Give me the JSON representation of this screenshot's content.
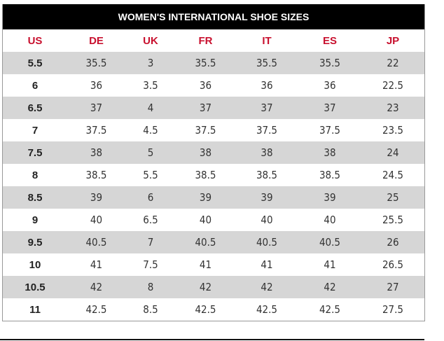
{
  "title": "WOMEN'S INTERNATIONAL SHOE SIZES",
  "headers": [
    "US",
    "DE",
    "UK",
    "FR",
    "IT",
    "ES",
    "JP"
  ],
  "rows": [
    [
      "5.5",
      "35.5",
      "3",
      "35.5",
      "35.5",
      "35.5",
      "22"
    ],
    [
      "6",
      "36",
      "3.5",
      "36",
      "36",
      "36",
      "22.5"
    ],
    [
      "6.5",
      "37",
      "4",
      "37",
      "37",
      "37",
      "23"
    ],
    [
      "7",
      "37.5",
      "4.5",
      "37.5",
      "37.5",
      "37.5",
      "23.5"
    ],
    [
      "7.5",
      "38",
      "5",
      "38",
      "38",
      "38",
      "24"
    ],
    [
      "8",
      "38.5",
      "5.5",
      "38.5",
      "38.5",
      "38.5",
      "24.5"
    ],
    [
      "8.5",
      "39",
      "6",
      "39",
      "39",
      "39",
      "25"
    ],
    [
      "9",
      "40",
      "6.5",
      "40",
      "40",
      "40",
      "25.5"
    ],
    [
      "9.5",
      "40.5",
      "7",
      "40.5",
      "40.5",
      "40.5",
      "26"
    ],
    [
      "10",
      "41",
      "7.5",
      "41",
      "41",
      "41",
      "26.5"
    ],
    [
      "10.5",
      "42",
      "8",
      "42",
      "42",
      "42",
      "27"
    ],
    [
      "11",
      "42.5",
      "8.5",
      "42.5",
      "42.5",
      "42.5",
      "27.5"
    ]
  ],
  "colors": {
    "header_text": "#c8102e",
    "title_bg": "#000000",
    "alt_row": "#d6d6d6"
  }
}
